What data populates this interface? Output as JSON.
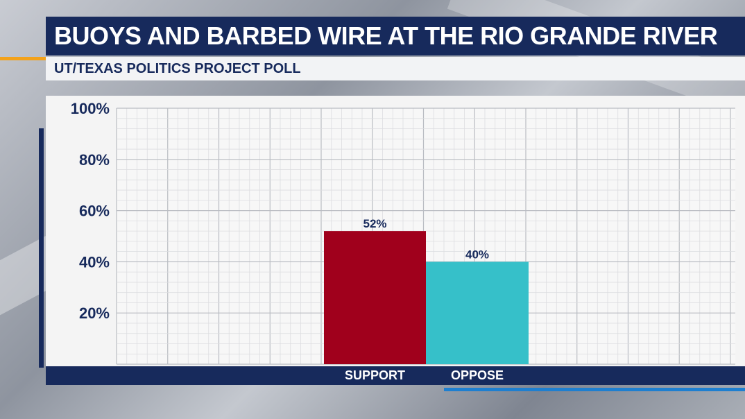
{
  "header": {
    "title": "BUOYS AND BARBED WIRE AT THE RIO GRANDE RIVER",
    "subtitle": "UT/TEXAS POLITICS PROJECT POLL"
  },
  "colors": {
    "navy": "#172a5c",
    "support": "#a0001c",
    "oppose": "#36c0c9",
    "accent_orange": "#f3a21b",
    "accent_blue": "#1e7fd0"
  },
  "chart_data": {
    "type": "bar",
    "categories": [
      "SUPPORT",
      "OPPOSE"
    ],
    "values": [
      52,
      40
    ],
    "data_labels": [
      "52%",
      "40%"
    ],
    "bar_colors": [
      "#a0001c",
      "#36c0c9"
    ],
    "title": "BUOYS AND BARBED WIRE AT THE RIO GRANDE RIVER",
    "subtitle": "UT/TEXAS POLITICS PROJECT POLL",
    "ylim": [
      0,
      100
    ],
    "yticks": [
      20,
      40,
      60,
      80,
      100
    ],
    "ytick_labels": [
      "20%",
      "40%",
      "60%",
      "80%",
      "100%"
    ],
    "grid": true
  }
}
